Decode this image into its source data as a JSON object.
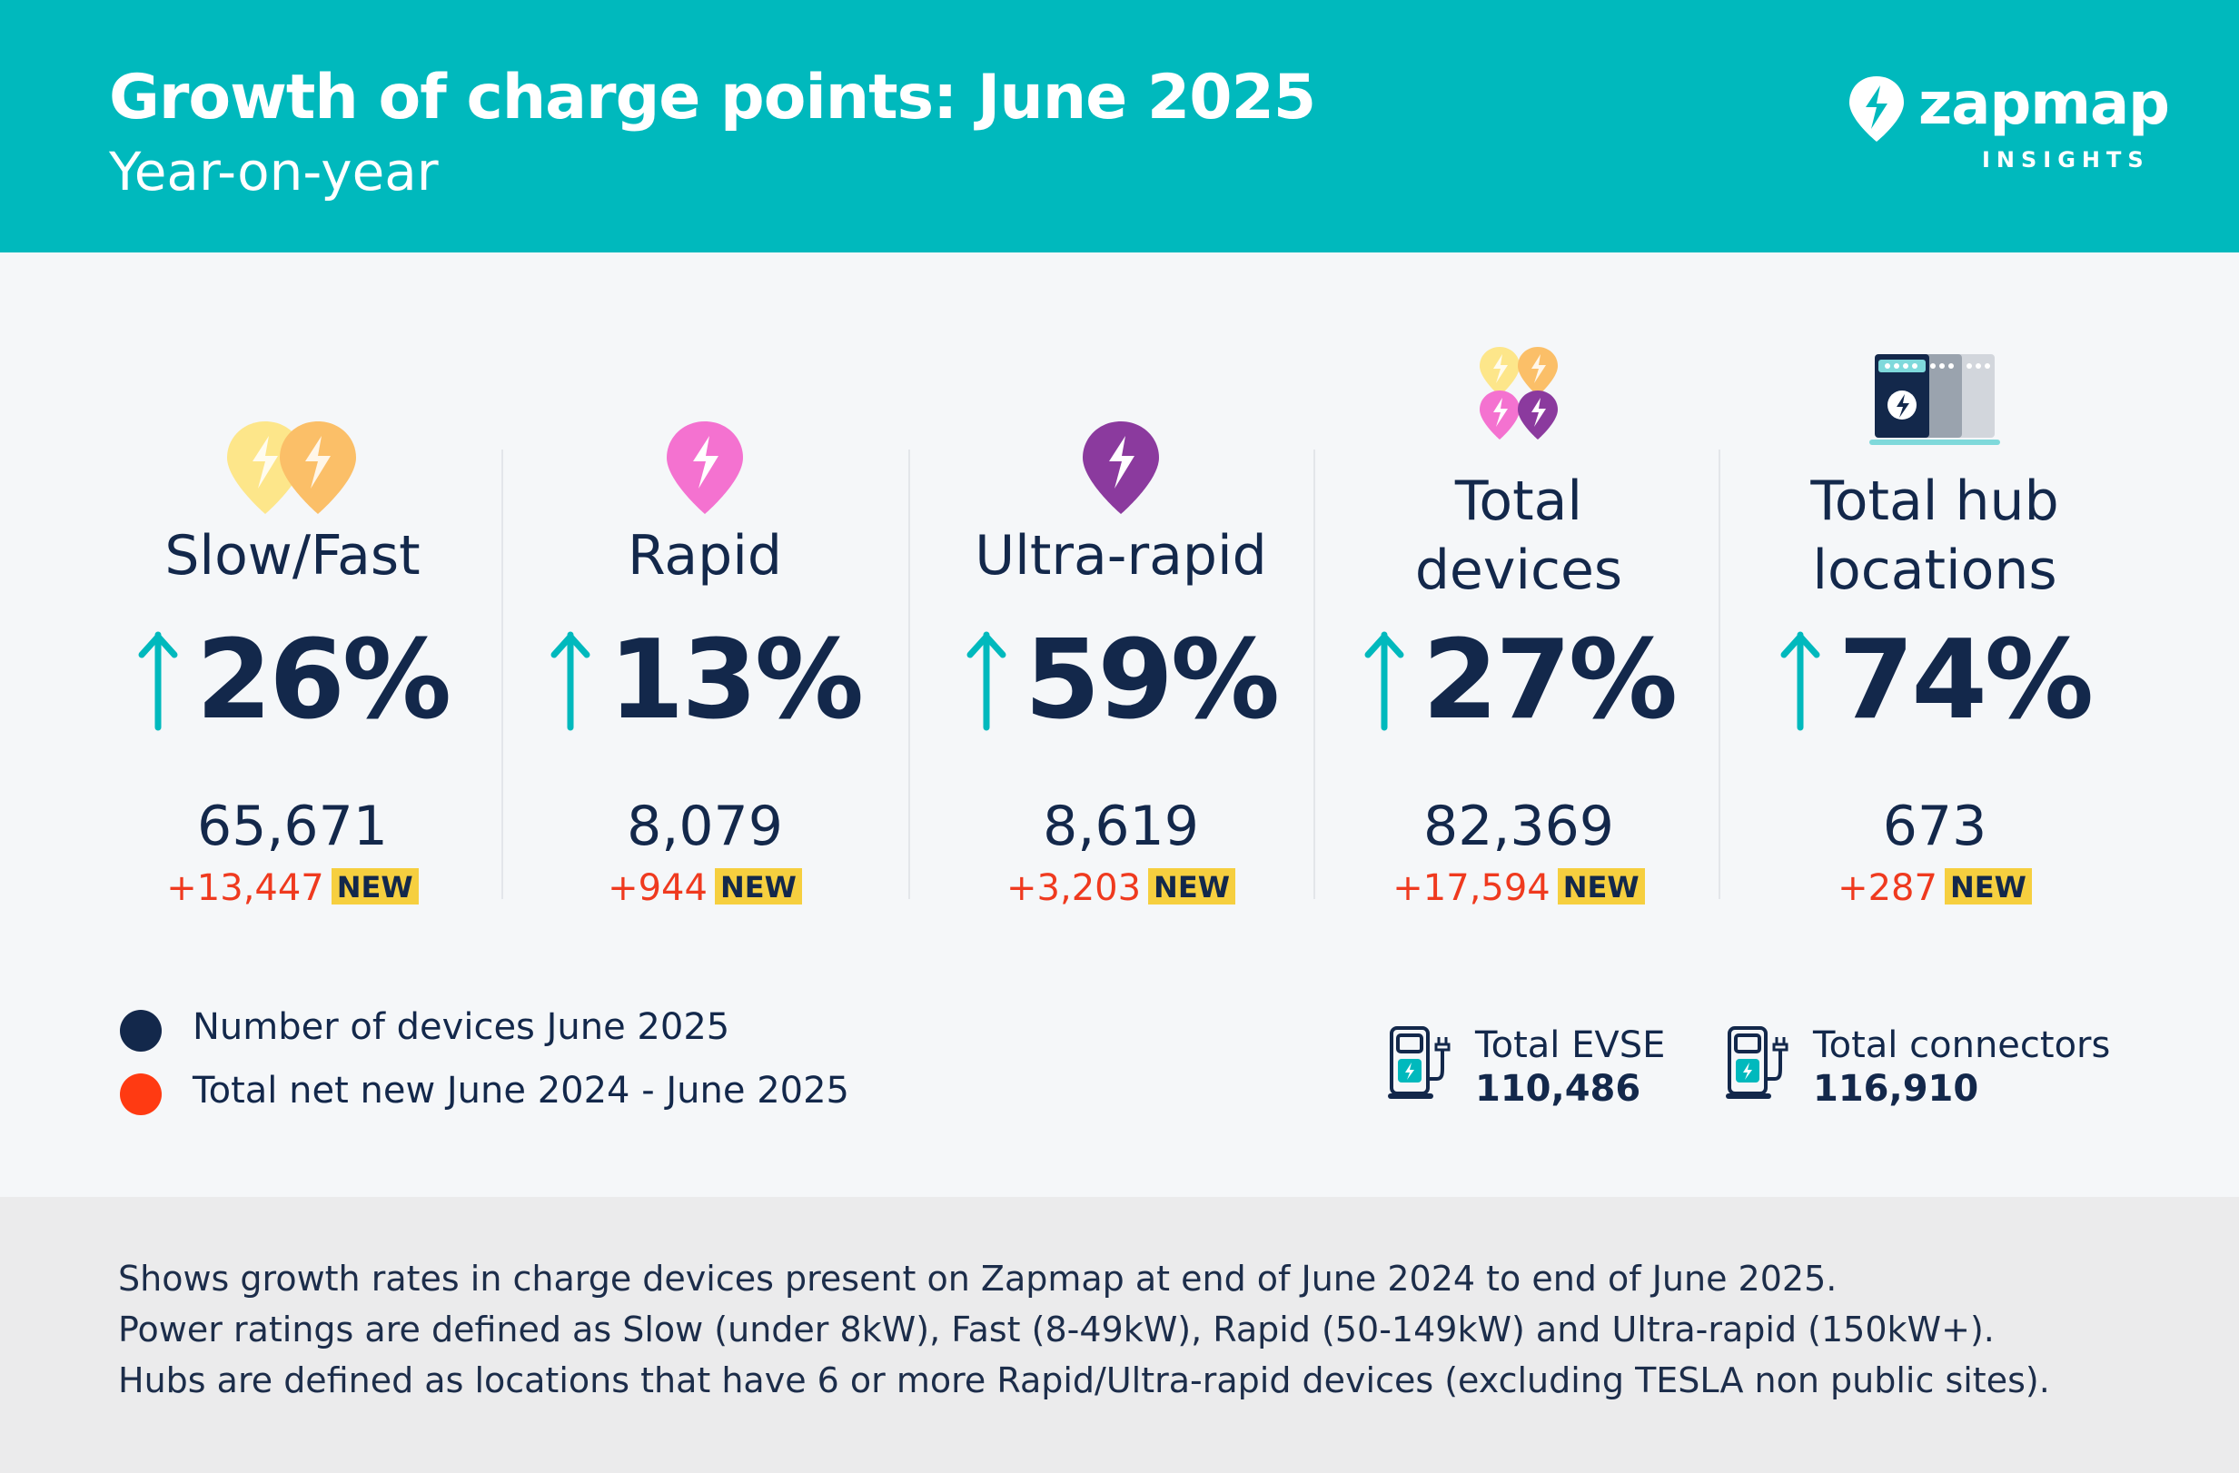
{
  "header": {
    "title": "Growth of charge points: June 2025",
    "subtitle": "Year-on-year",
    "logo_word": "zapmap",
    "logo_sub": "INSIGHTS"
  },
  "colors": {
    "teal": "#00b9bd",
    "navy": "#13284b",
    "red": "#ef3a1f",
    "badge": "#f6cf3f",
    "yellow": "#fde68a",
    "orange": "#fbbf68",
    "pink": "#f472d0",
    "purple": "#8b3a9e"
  },
  "columns": [
    {
      "label": "Slow/Fast",
      "pct": "26%",
      "count": "65,671",
      "delta": "+13,447",
      "badge": "NEW",
      "icon": "slow-fast-pins-icon"
    },
    {
      "label": "Rapid",
      "pct": "13%",
      "count": "8,079",
      "delta": "+944",
      "badge": "NEW",
      "icon": "rapid-pin-icon"
    },
    {
      "label": "Ultra-rapid",
      "pct": "59%",
      "count": "8,619",
      "delta": "+3,203",
      "badge": "NEW",
      "icon": "ultra-rapid-pin-icon"
    },
    {
      "label_line1": "Total",
      "label_line2": "devices",
      "pct": "27%",
      "count": "82,369",
      "delta": "+17,594",
      "badge": "NEW",
      "icon": "all-pins-icon"
    },
    {
      "label_line1": "Total hub",
      "label_line2": "locations",
      "pct": "74%",
      "count": "673",
      "delta": "+287",
      "badge": "NEW",
      "icon": "charging-hub-icon"
    }
  ],
  "legend": {
    "devices": "Number of devices June 2025",
    "net_new": "Total net new June 2024 - June 2025"
  },
  "totals": {
    "evse_label": "Total EVSE",
    "evse_value": "110,486",
    "connectors_label": "Total connectors",
    "connectors_value": "116,910"
  },
  "footer": {
    "line1": "Shows growth rates in charge devices present on Zapmap at end of June 2024 to end of June 2025.",
    "line2": "Power ratings are defined as Slow (under 8kW), Fast (8-49kW), Rapid (50-149kW) and Ultra-rapid (150kW+).",
    "line3": "Hubs are defined as locations that have 6 or more Rapid/Ultra-rapid devices (excluding TESLA non public sites)."
  }
}
